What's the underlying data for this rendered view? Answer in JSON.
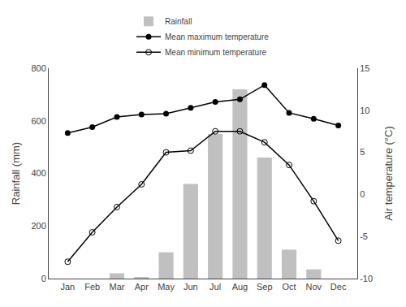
{
  "chart_data": {
    "type": "bar",
    "categories": [
      "Jan",
      "Feb",
      "Mar",
      "Apr",
      "May",
      "Jun",
      "Jul",
      "Aug",
      "Sep",
      "Oct",
      "Nov",
      "Dec"
    ],
    "series": [
      {
        "name": "Rainfall",
        "type": "bar",
        "color": "#c0c0c0",
        "values": [
          0,
          0,
          20,
          5,
          100,
          360,
          550,
          720,
          460,
          110,
          35,
          0
        ]
      },
      {
        "name": "Mean maximum temperature",
        "type": "line",
        "axis": "y2",
        "color": "#000000",
        "marker": "circle",
        "values": [
          7.3,
          8.0,
          9.2,
          9.5,
          9.6,
          10.3,
          11.0,
          11.3,
          13.0,
          9.7,
          9.0,
          8.2
        ]
      },
      {
        "name": "Mean minimum temperature",
        "type": "line",
        "axis": "y2",
        "color": "#000000",
        "marker": "circle-open",
        "values": [
          -8.0,
          -4.5,
          -1.5,
          1.2,
          5.0,
          5.2,
          7.5,
          7.5,
          6.2,
          3.5,
          -0.8,
          -5.5
        ]
      }
    ],
    "ylabel": "Rainfall (mm)",
    "y2label": "Air temperature (°C)",
    "ylim": [
      0,
      800
    ],
    "yticks": [
      0,
      200,
      400,
      600,
      800
    ],
    "y2lim": [
      -10,
      15
    ],
    "y2ticks": [
      -10,
      -5,
      0,
      5,
      10,
      15
    ],
    "legend": "top",
    "grid": false
  }
}
